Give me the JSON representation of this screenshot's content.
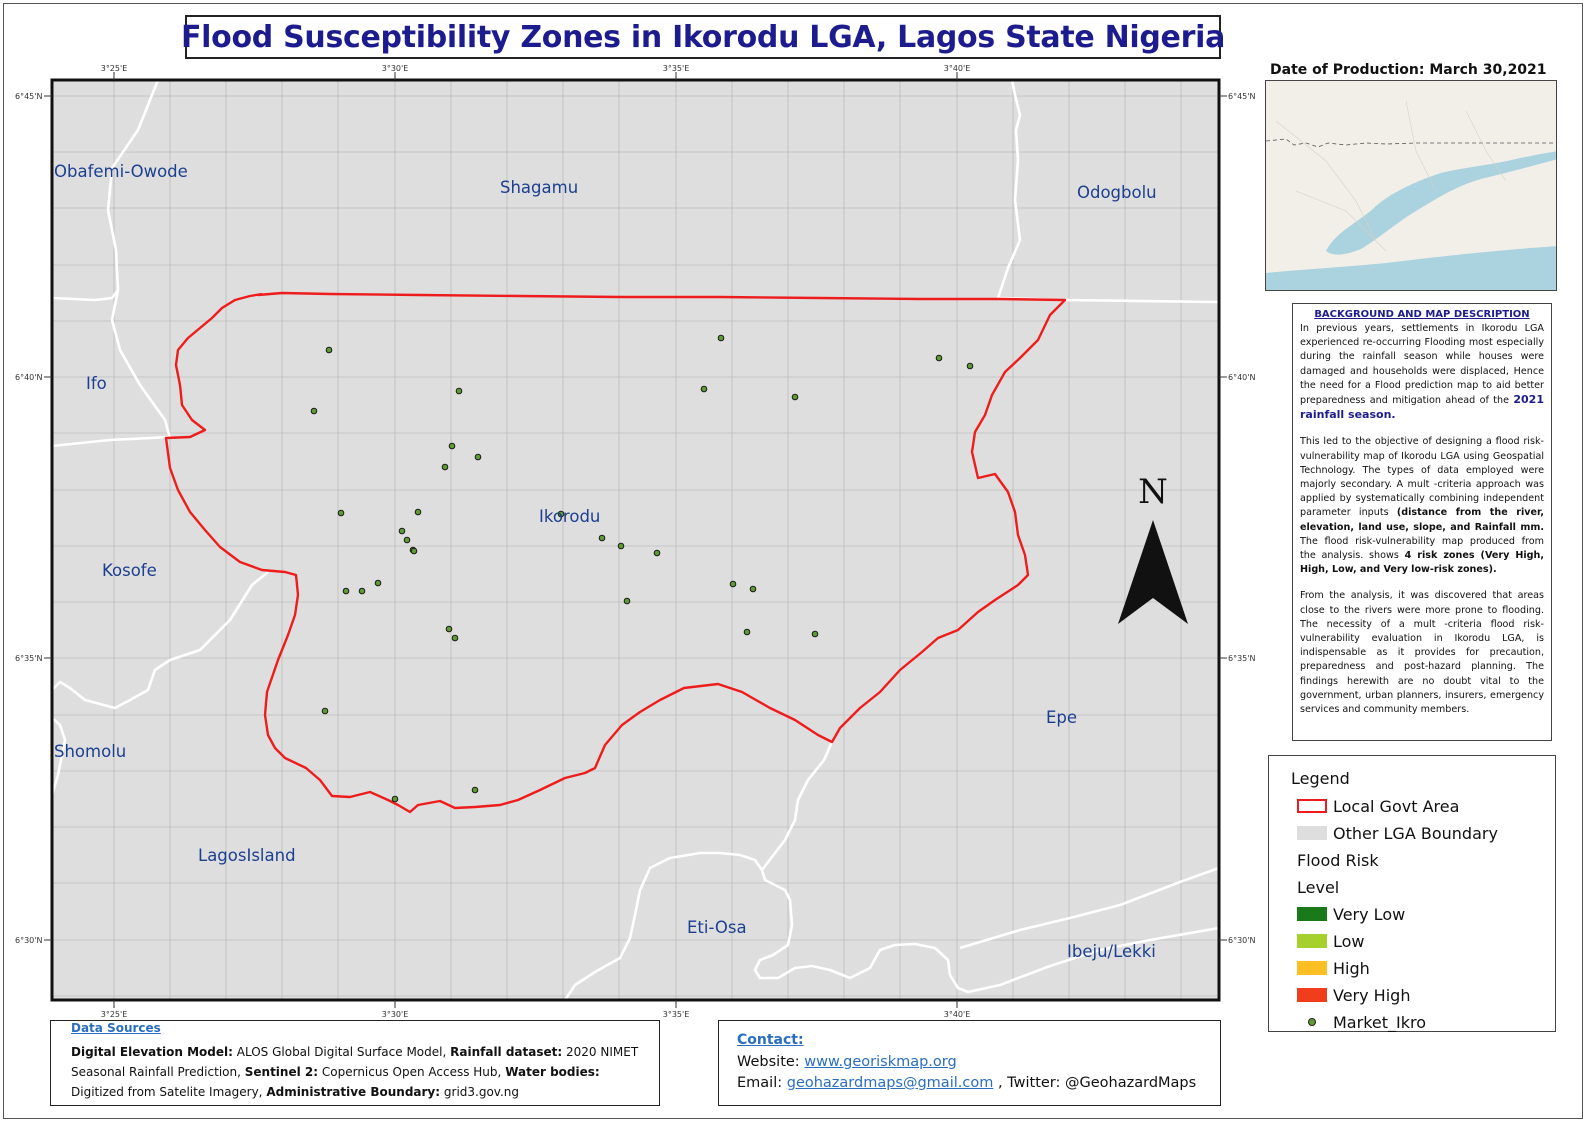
{
  "title": "Flood Susceptibility Zones in Ikorodu LGA, Lagos State Nigeria",
  "production": {
    "label": "Date of Production:",
    "date": "March 30,2021"
  },
  "graticule": {
    "lon_labels": [
      "3°25'E",
      "3°30'E",
      "3°35'E",
      "3°40'E"
    ],
    "lat_labels": [
      "6°45'N",
      "6°40'N",
      "6°35'N",
      "6°30'N"
    ]
  },
  "map_labels": {
    "obafemi": "Obafemi-Owode",
    "shagamu": "Shagamu",
    "odogbolu": "Odogbolu",
    "ifo": "Ifo",
    "kosofe": "Kosofe",
    "ikorodu": "Ikorodu",
    "shomolu": "Shomolu",
    "lagos_island": "LagosIsland",
    "eti_osa": "Eti-Osa",
    "epe": "Epe",
    "ibeju": "Ibeju/Lekki"
  },
  "north_arrow": "N",
  "description": {
    "heading": "BACKGROUND AND MAP DESCRIPTION",
    "p1": "In previous years, settlements in Ikorodu LGA experienced re-occurring Flooding most especially during the rainfall season while houses were damaged and households were displaced, Hence the need for a Flood prediction map to aid better preparedness and mitigation ahead of the",
    "p1_em": "2021 rainfall season.",
    "p2a": "This led to the objective of designing a flood risk-vulnerability map of Ikorodu LGA using Geospatial Technology. The types of data employed were majorly secondary. A mult -criteria approach was applied by systematically combining independent parameter inputs",
    "p2b": "(distance from the river, elevation, land use, slope, and Rainfall mm.",
    "p2c": "The flood risk-vulnerability map produced from the analysis. shows",
    "p2d": "4 risk zones (Very High, High, Low, and Very low-risk zones).",
    "p3": "From the analysis, it was discovered that areas close to the rivers were more prone to flooding. The necessity of a mult -criteria flood risk-vulnerability evaluation in Ikorodu LGA, is indispensable as it provides for precaution, preparedness and post-hazard planning. The findings herewith are no doubt vital to the government, urban planners, insurers, emergency services and community members."
  },
  "legend": {
    "title": "Legend",
    "items": [
      {
        "label": "Local Govt Area",
        "kind": "outline",
        "color": "#ee1c1c"
      },
      {
        "label": "Other LGA Boundary",
        "kind": "fill",
        "color": "#dedede"
      },
      {
        "label": "Flood Risk",
        "kind": "text"
      },
      {
        "label": "Level",
        "kind": "text"
      },
      {
        "label": "Very Low",
        "kind": "fill",
        "color": "#1a7a1a"
      },
      {
        "label": "Low",
        "kind": "fill",
        "color": "#a6d12c"
      },
      {
        "label": "High",
        "kind": "fill",
        "color": "#fbbf24"
      },
      {
        "label": "Very High",
        "kind": "fill",
        "color": "#f23d1c"
      },
      {
        "label": "Market_Ikro",
        "kind": "dot",
        "color": "#5c9c32"
      }
    ]
  },
  "data_sources": {
    "title": "Data Sources",
    "dem_label": "Digital Elevation Model:",
    "dem": "ALOS Global Digital Surface Model,",
    "rain_label": "Rainfall dataset:",
    "rain": "2020 NIMET Seasonal Rainfall Prediction,",
    "s2_label": "Sentinel 2:",
    "s2": "Copernicus Open Access Hub,",
    "water_label": "Water bodies:",
    "water": "Digitized from Satelite Imagery,",
    "admin_label": "Administrative Boundary:",
    "admin": "grid3.gov.ng"
  },
  "contact": {
    "title": "Contact:",
    "website_label": "Website:",
    "website": "www.georiskmap.org",
    "email_label": "Email:",
    "email": "geohazardmaps@gmail.com",
    "twitter": ", Twitter: @GeohazardMaps"
  },
  "colors": {
    "title": "#1c1c8f",
    "boundary": "#ee1c1c",
    "map_bg": "#dedede",
    "lga_label": "#1c3f8f",
    "link": "#2a6ec2",
    "market": "#5c9c32"
  }
}
